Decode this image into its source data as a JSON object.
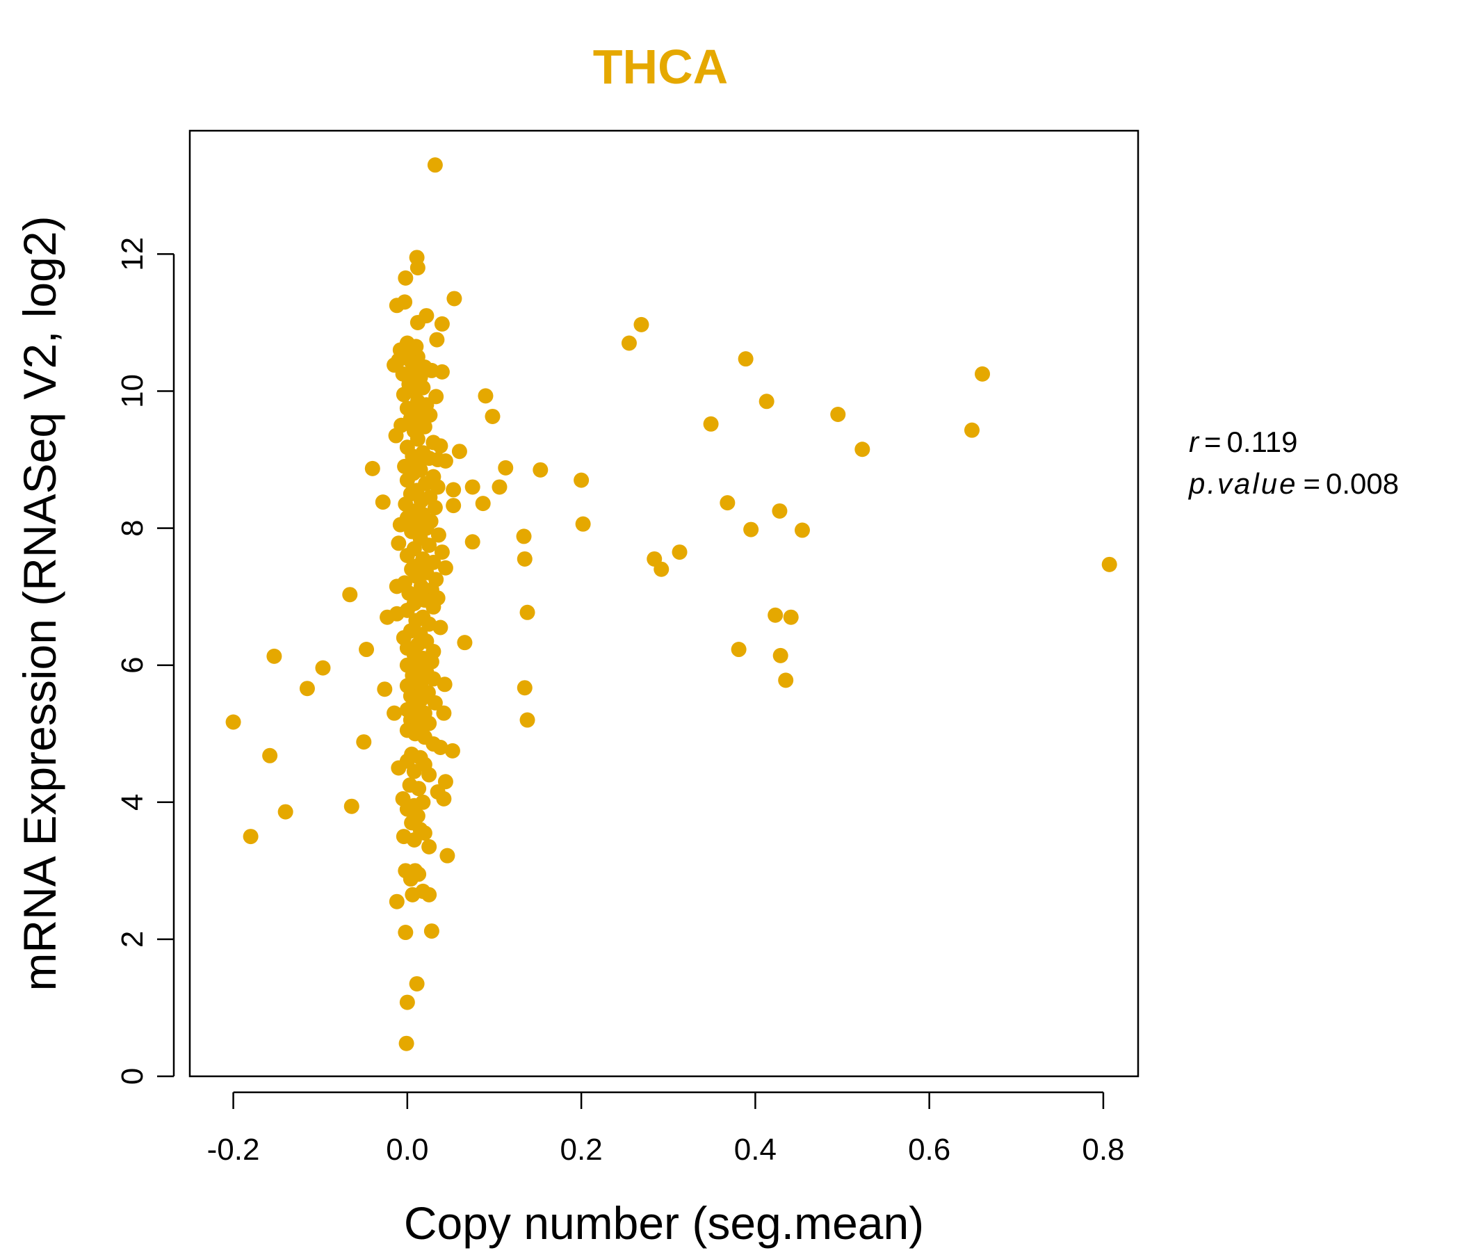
{
  "chart_data": {
    "type": "scatter",
    "title": "THCA",
    "xlabel": "Copy number (seg.mean)",
    "ylabel": "mRNA Expression (RNASeq V2, log2)",
    "xlim": [
      -0.25,
      0.84
    ],
    "ylim": [
      0,
      13.8
    ],
    "x_ticks": [
      -0.2,
      0.0,
      0.2,
      0.4,
      0.6,
      0.8
    ],
    "x_tick_labels": [
      "-0.2",
      "0.0",
      "0.2",
      "0.4",
      "0.6",
      "0.8"
    ],
    "y_ticks": [
      0,
      2,
      4,
      6,
      8,
      10,
      12
    ],
    "y_tick_labels": [
      "0",
      "2",
      "4",
      "6",
      "8",
      "10",
      "12"
    ],
    "grid": false,
    "legend": "none",
    "colors": {
      "points": "#E5A800",
      "title": "#E5A800",
      "axis": "#000000"
    },
    "annotations": [
      {
        "name": "r",
        "label": "r",
        "equals": "=",
        "value": "0.119"
      },
      {
        "name": "p-value",
        "label": "p.value",
        "equals": "=",
        "value": "0.008"
      }
    ],
    "points": [
      [
        0.032,
        13.3
      ],
      [
        0.011,
        11.95
      ],
      [
        0.012,
        11.8
      ],
      [
        -0.002,
        11.65
      ],
      [
        0.054,
        11.35
      ],
      [
        -0.012,
        11.25
      ],
      [
        -0.003,
        11.3
      ],
      [
        0.022,
        11.1
      ],
      [
        0.012,
        11.0
      ],
      [
        0.04,
        10.98
      ],
      [
        0.034,
        10.75
      ],
      [
        0.0,
        10.7
      ],
      [
        0.01,
        10.65
      ],
      [
        -0.008,
        10.6
      ],
      [
        0.003,
        10.55
      ],
      [
        0.012,
        10.5
      ],
      [
        -0.01,
        10.45
      ],
      [
        0.005,
        10.42
      ],
      [
        -0.015,
        10.38
      ],
      [
        0.02,
        10.35
      ],
      [
        0.008,
        10.3
      ],
      [
        0.04,
        10.28
      ],
      [
        0.028,
        10.3
      ],
      [
        -0.005,
        10.25
      ],
      [
        0.015,
        10.2
      ],
      [
        0.002,
        10.1
      ],
      [
        0.018,
        10.05
      ],
      [
        0.007,
        10.0
      ],
      [
        -0.004,
        9.95
      ],
      [
        0.033,
        9.92
      ],
      [
        0.012,
        9.85
      ],
      [
        0.022,
        9.8
      ],
      [
        0.0,
        9.75
      ],
      [
        0.01,
        9.7
      ],
      [
        0.026,
        9.65
      ],
      [
        0.004,
        9.6
      ],
      [
        0.015,
        9.55
      ],
      [
        -0.007,
        9.5
      ],
      [
        0.02,
        9.48
      ],
      [
        0.008,
        9.42
      ],
      [
        -0.013,
        9.35
      ],
      [
        0.012,
        9.3
      ],
      [
        0.03,
        9.25
      ],
      [
        0.038,
        9.2
      ],
      [
        0.0,
        9.18
      ],
      [
        0.018,
        9.1
      ],
      [
        0.006,
        9.05
      ],
      [
        0.035,
        9.0
      ],
      [
        0.044,
        8.98
      ],
      [
        0.025,
        9.02
      ],
      [
        0.012,
        8.95
      ],
      [
        -0.003,
        8.9
      ],
      [
        0.015,
        8.85
      ],
      [
        0.007,
        8.8
      ],
      [
        0.03,
        8.75
      ],
      [
        0.0,
        8.7
      ],
      [
        0.021,
        8.65
      ],
      [
        0.035,
        8.6
      ],
      [
        0.011,
        8.55
      ],
      [
        0.004,
        8.5
      ],
      [
        0.026,
        8.45
      ],
      [
        0.016,
        8.4
      ],
      [
        -0.002,
        8.35
      ],
      [
        0.032,
        8.3
      ],
      [
        0.009,
        8.25
      ],
      [
        0.018,
        8.2
      ],
      [
        0.0,
        8.15
      ],
      [
        0.027,
        8.1
      ],
      [
        0.012,
        8.05
      ],
      [
        -0.008,
        8.05
      ],
      [
        0.022,
        8.0
      ],
      [
        0.005,
        7.95
      ],
      [
        0.036,
        7.9
      ],
      [
        0.015,
        7.85
      ],
      [
        -0.01,
        7.78
      ],
      [
        0.025,
        7.75
      ],
      [
        0.008,
        7.7
      ],
      [
        0.04,
        7.65
      ],
      [
        0.0,
        7.6
      ],
      [
        0.018,
        7.55
      ],
      [
        0.03,
        7.5
      ],
      [
        0.012,
        7.45
      ],
      [
        0.044,
        7.42
      ],
      [
        0.005,
        7.4
      ],
      [
        0.022,
        7.35
      ],
      [
        0.01,
        7.3
      ],
      [
        0.033,
        7.25
      ],
      [
        -0.003,
        7.2
      ],
      [
        0.016,
        7.15
      ],
      [
        -0.012,
        7.15
      ],
      [
        0.028,
        7.1
      ],
      [
        0.002,
        7.05
      ],
      [
        0.013,
        7.0
      ],
      [
        0.035,
        6.98
      ],
      [
        0.02,
        6.95
      ],
      [
        0.008,
        6.9
      ],
      [
        0.03,
        6.85
      ],
      [
        0.0,
        6.8
      ],
      [
        -0.012,
        6.75
      ],
      [
        0.018,
        6.7
      ],
      [
        0.01,
        6.65
      ],
      [
        0.025,
        6.6
      ],
      [
        0.038,
        6.55
      ],
      [
        0.004,
        6.5
      ],
      [
        0.015,
        6.45
      ],
      [
        -0.004,
        6.4
      ],
      [
        0.022,
        6.35
      ],
      [
        0.012,
        6.3
      ],
      [
        0.0,
        6.25
      ],
      [
        0.03,
        6.2
      ],
      [
        0.008,
        6.15
      ],
      [
        0.018,
        6.1
      ],
      [
        0.028,
        6.05
      ],
      [
        0.0,
        6.0
      ],
      [
        0.012,
        5.95
      ],
      [
        0.022,
        5.9
      ],
      [
        0.006,
        5.85
      ],
      [
        0.03,
        5.8
      ],
      [
        0.016,
        5.75
      ],
      [
        0.0,
        5.7
      ],
      [
        0.043,
        5.72
      ],
      [
        0.01,
        5.65
      ],
      [
        0.024,
        5.6
      ],
      [
        0.004,
        5.55
      ],
      [
        0.016,
        5.5
      ],
      [
        0.032,
        5.45
      ],
      [
        0.008,
        5.4
      ],
      [
        0.0,
        5.35
      ],
      [
        0.02,
        5.3
      ],
      [
        0.042,
        5.3
      ],
      [
        -0.015,
        5.3
      ],
      [
        0.012,
        5.25
      ],
      [
        0.004,
        5.2
      ],
      [
        0.025,
        5.15
      ],
      [
        0.015,
        5.1
      ],
      [
        0.0,
        5.05
      ],
      [
        0.009,
        5.0
      ],
      [
        0.02,
        4.95
      ],
      [
        0.03,
        4.85
      ],
      [
        0.038,
        4.8
      ],
      [
        0.052,
        4.75
      ],
      [
        0.005,
        4.7
      ],
      [
        0.015,
        4.65
      ],
      [
        0.0,
        4.6
      ],
      [
        0.02,
        4.55
      ],
      [
        -0.01,
        4.5
      ],
      [
        0.008,
        4.45
      ],
      [
        0.025,
        4.4
      ],
      [
        0.044,
        4.3
      ],
      [
        0.003,
        4.25
      ],
      [
        0.013,
        4.2
      ],
      [
        0.035,
        4.15
      ],
      [
        0.042,
        4.05
      ],
      [
        -0.005,
        4.05
      ],
      [
        0.018,
        4.0
      ],
      [
        0.008,
        3.95
      ],
      [
        0.0,
        3.9
      ],
      [
        0.012,
        3.8
      ],
      [
        0.005,
        3.7
      ],
      [
        0.015,
        3.6
      ],
      [
        0.02,
        3.55
      ],
      [
        -0.004,
        3.5
      ],
      [
        0.008,
        3.45
      ],
      [
        0.025,
        3.35
      ],
      [
        0.046,
        3.22
      ],
      [
        -0.002,
        3.0
      ],
      [
        0.009,
        3.0
      ],
      [
        0.013,
        2.95
      ],
      [
        0.004,
        2.88
      ],
      [
        0.018,
        2.7
      ],
      [
        0.025,
        2.65
      ],
      [
        0.006,
        2.65
      ],
      [
        -0.012,
        2.55
      ],
      [
        0.028,
        2.12
      ],
      [
        -0.002,
        2.1
      ],
      [
        0.011,
        1.35
      ],
      [
        0.0,
        1.08
      ],
      [
        -0.001,
        0.48
      ],
      [
        -0.2,
        5.17
      ],
      [
        -0.18,
        3.5
      ],
      [
        -0.158,
        4.68
      ],
      [
        -0.153,
        6.13
      ],
      [
        -0.14,
        3.86
      ],
      [
        -0.115,
        5.66
      ],
      [
        -0.097,
        5.96
      ],
      [
        -0.066,
        7.03
      ],
      [
        -0.064,
        3.94
      ],
      [
        -0.05,
        4.88
      ],
      [
        -0.047,
        6.23
      ],
      [
        -0.04,
        8.87
      ],
      [
        -0.028,
        8.38
      ],
      [
        -0.026,
        5.65
      ],
      [
        -0.023,
        6.7
      ],
      [
        0.06,
        9.12
      ],
      [
        0.053,
        8.56
      ],
      [
        0.053,
        8.33
      ],
      [
        0.066,
        6.33
      ],
      [
        0.075,
        8.6
      ],
      [
        0.075,
        7.8
      ],
      [
        0.087,
        8.36
      ],
      [
        0.09,
        9.93
      ],
      [
        0.098,
        9.63
      ],
      [
        0.106,
        8.6
      ],
      [
        0.113,
        8.88
      ],
      [
        0.134,
        7.88
      ],
      [
        0.135,
        7.55
      ],
      [
        0.135,
        5.67
      ],
      [
        0.138,
        6.77
      ],
      [
        0.138,
        5.2
      ],
      [
        0.153,
        8.85
      ],
      [
        0.2,
        8.7
      ],
      [
        0.202,
        8.06
      ],
      [
        0.255,
        10.7
      ],
      [
        0.269,
        10.97
      ],
      [
        0.284,
        7.55
      ],
      [
        0.292,
        7.4
      ],
      [
        0.313,
        7.65
      ],
      [
        0.349,
        9.52
      ],
      [
        0.368,
        8.37
      ],
      [
        0.381,
        6.23
      ],
      [
        0.389,
        10.47
      ],
      [
        0.395,
        7.98
      ],
      [
        0.413,
        9.85
      ],
      [
        0.423,
        6.73
      ],
      [
        0.428,
        8.25
      ],
      [
        0.429,
        6.14
      ],
      [
        0.435,
        5.78
      ],
      [
        0.441,
        6.7
      ],
      [
        0.454,
        7.97
      ],
      [
        0.495,
        9.66
      ],
      [
        0.523,
        9.15
      ],
      [
        0.649,
        9.43
      ],
      [
        0.661,
        10.25
      ],
      [
        0.807,
        7.47
      ]
    ]
  }
}
